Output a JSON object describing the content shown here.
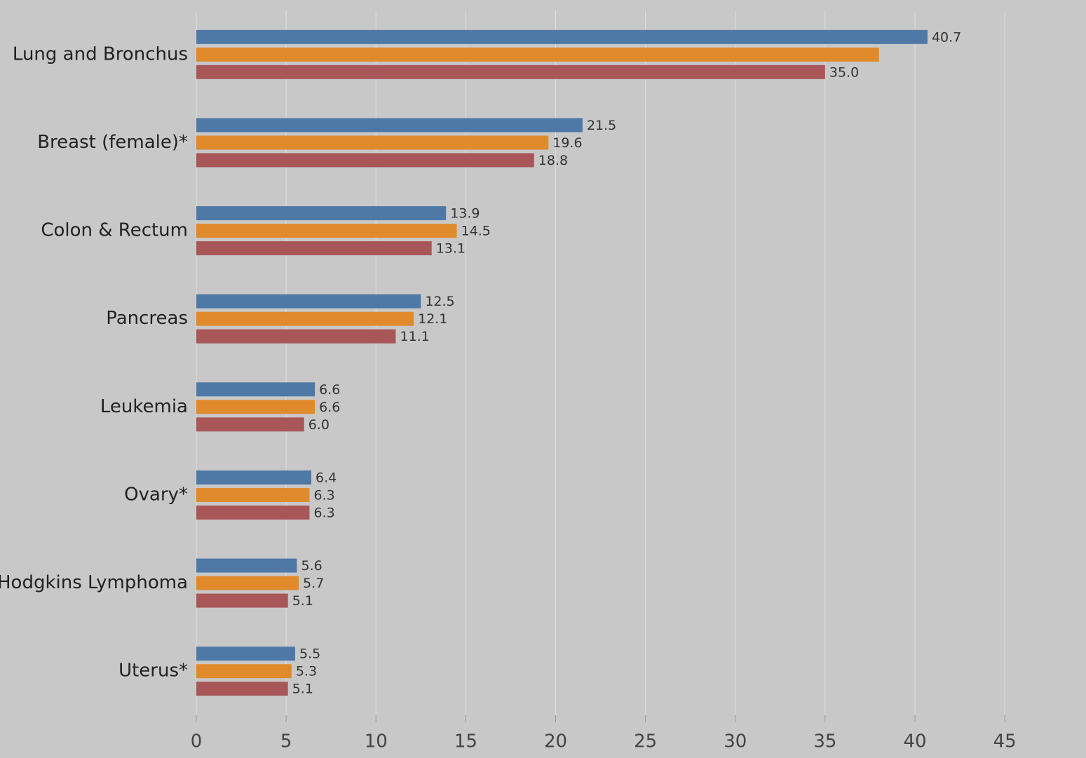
{
  "chart_data": {
    "type": "bar",
    "categories": [
      "Lung and Bronchus",
      "Breast (female)*",
      "Colon & Rectum",
      "Pancreas",
      "Leukemia",
      "Ovary*",
      "Non-Hodgkins Lymphoma",
      "Uterus*"
    ],
    "series": [
      {
        "color": "#4e79a7",
        "values": [
          40.7,
          21.5,
          13.9,
          12.5,
          6.6,
          6.4,
          5.6,
          5.5
        ],
        "value_labels": [
          "40.7",
          "21.5",
          "13.9",
          "12.5",
          "6.6",
          "6.4",
          "5.6",
          "5.5"
        ]
      },
      {
        "color": "#e08a2c",
        "values": [
          38,
          19.6,
          14.5,
          12.1,
          6.6,
          6.3,
          5.7,
          5.3
        ],
        "value_labels": [
          null,
          "19.6",
          "14.5",
          "12.1",
          "6.6",
          "6.3",
          "5.7",
          "5.3"
        ]
      },
      {
        "color": "#a85658",
        "values": [
          35,
          18.8,
          13.1,
          11.1,
          6,
          6.3,
          5.1,
          5.1
        ],
        "value_labels": [
          "35.0",
          "18.8",
          "13.1",
          "11.1",
          "6.0",
          "6.3",
          "5.1",
          "5.1"
        ]
      }
    ],
    "xlim": [
      0,
      48
    ],
    "xticks": [
      0,
      5,
      10,
      15,
      20,
      25,
      30,
      35,
      40,
      45
    ],
    "grid": true
  }
}
